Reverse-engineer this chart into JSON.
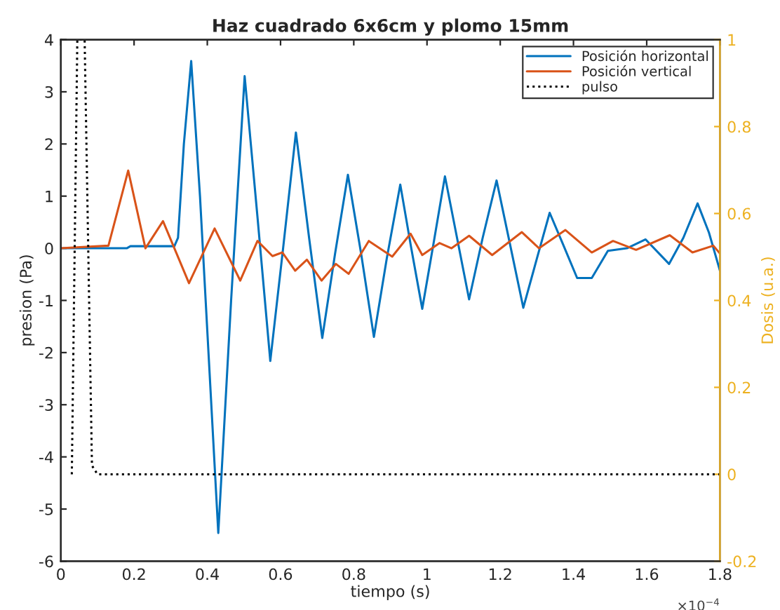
{
  "chart_data": {
    "type": "line",
    "title": "Haz cuadrado 6x6cm y plomo 15mm",
    "xlabel": "tiempo (s)",
    "ylabel": "presion (Pa)",
    "y2label": "Dosis (u.a.)",
    "xlim": [
      0,
      1.8
    ],
    "xticks": [
      0,
      0.2,
      0.4,
      0.6,
      0.8,
      1,
      1.2,
      1.4,
      1.6,
      1.8
    ],
    "ylim": [
      -6,
      4
    ],
    "yticks": [
      -6,
      -5,
      -4,
      -3,
      -2,
      -1,
      0,
      1,
      2,
      3,
      4
    ],
    "y2lim": [
      -0.2,
      1
    ],
    "y2ticks": [
      -0.2,
      0,
      0.2,
      0.4,
      0.6,
      0.8,
      1
    ],
    "legend": "top right",
    "grid": false,
    "annotations": [
      "×10$^{−4}$"
    ],
    "series": [
      {
        "name": "Posición horizontal",
        "color": "#0072bd",
        "line_style": "solid",
        "x": [
          0,
          0.18,
          0.19,
          0.31,
          0.32,
          0.336,
          0.356,
          0.38,
          0.43,
          0.465,
          0.502,
          0.537,
          0.572,
          0.607,
          0.642,
          0.678,
          0.714,
          0.749,
          0.784,
          0.82,
          0.855,
          0.89,
          0.927,
          0.957,
          0.987,
          1.018,
          1.049,
          1.082,
          1.115,
          1.152,
          1.19,
          1.226,
          1.263,
          1.3,
          1.335,
          1.37,
          1.41,
          1.45,
          1.494,
          1.546,
          1.597,
          1.661,
          1.7,
          1.739,
          1.77,
          1.8
        ],
        "values": [
          0,
          0,
          0.04,
          0.04,
          0.2,
          2.0,
          3.59,
          1.0,
          -5.46,
          -1.0,
          3.3,
          0.6,
          -2.16,
          0.0,
          2.22,
          0.2,
          -1.72,
          -0.1,
          1.41,
          -0.1,
          -1.7,
          -0.2,
          1.22,
          0.0,
          -1.16,
          0.1,
          1.38,
          0.2,
          -0.98,
          0.2,
          1.3,
          0.1,
          -1.14,
          -0.2,
          0.68,
          0.1,
          -0.57,
          -0.57,
          -0.05,
          0.0,
          0.17,
          -0.3,
          0.2,
          0.86,
          0.3,
          -0.43
        ]
      },
      {
        "name": "Posición vertical",
        "color": "#d95319",
        "line_style": "solid",
        "x": [
          0,
          0.13,
          0.184,
          0.231,
          0.279,
          0.35,
          0.42,
          0.49,
          0.537,
          0.578,
          0.605,
          0.64,
          0.672,
          0.712,
          0.751,
          0.786,
          0.841,
          0.905,
          0.955,
          0.987,
          1.034,
          1.067,
          1.115,
          1.178,
          1.259,
          1.306,
          1.378,
          1.45,
          1.508,
          1.571,
          1.663,
          1.725,
          1.782,
          1.8
        ],
        "values": [
          0,
          0.05,
          1.49,
          0.0,
          0.52,
          -0.67,
          0.38,
          -0.62,
          0.14,
          -0.15,
          -0.08,
          -0.43,
          -0.22,
          -0.62,
          -0.3,
          -0.49,
          0.14,
          -0.16,
          0.28,
          -0.13,
          0.1,
          0.0,
          0.24,
          -0.13,
          0.31,
          0.0,
          0.35,
          -0.08,
          0.14,
          -0.03,
          0.25,
          -0.08,
          0.05,
          -0.1
        ]
      },
      {
        "name": "pulso",
        "color": "#000000",
        "line_style": "dotted",
        "axis": "y2",
        "x": [
          0.03,
          0.045,
          0.065,
          0.085,
          0.1,
          1.8
        ],
        "values": [
          0,
          1,
          1,
          0.02,
          0,
          0
        ]
      }
    ]
  }
}
